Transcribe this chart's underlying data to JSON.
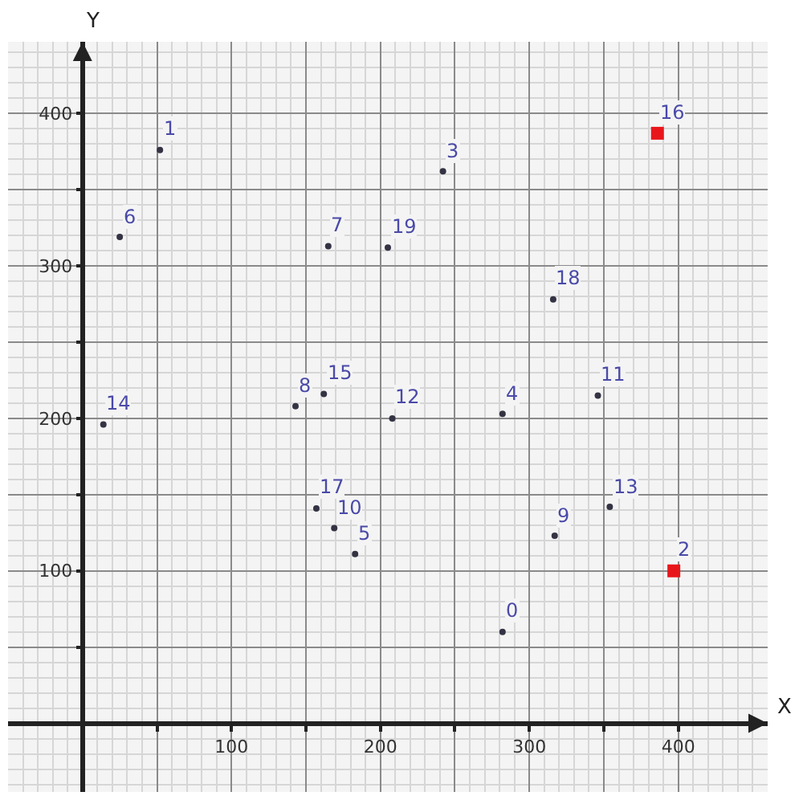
{
  "chart_data": {
    "type": "scatter",
    "xlabel": "X",
    "ylabel": "Y",
    "xlim": [
      -50,
      460
    ],
    "ylim": [
      -45,
      447
    ],
    "xticks": [
      {
        "value": 50,
        "label": null
      },
      100,
      {
        "value": 150,
        "label": null
      },
      200,
      {
        "value": 250,
        "label": null
      },
      300,
      {
        "value": 350,
        "label": null
      },
      400
    ],
    "yticks": [
      {
        "value": 50,
        "label": null
      },
      100,
      {
        "value": 150,
        "label": null
      },
      200,
      {
        "value": 250,
        "label": null
      },
      300,
      {
        "value": 350,
        "label": null
      },
      400
    ],
    "grid": true,
    "series": [
      {
        "color": "#333344",
        "marker": "circle",
        "x": [
          282,
          52,
          242,
          282,
          183,
          25,
          165,
          143,
          317,
          169,
          346,
          208,
          354,
          14,
          162,
          157,
          316,
          205
        ],
        "values": [
          60,
          376,
          362,
          203,
          111,
          319,
          313,
          208,
          123,
          128,
          215,
          200,
          142,
          196,
          216,
          141,
          278,
          312
        ]
      },
      {
        "color": "#e8161b",
        "marker": "square",
        "x": [
          397,
          386
        ],
        "values": [
          100,
          387
        ]
      }
    ],
    "annotations": [
      {
        "text": "0",
        "x": 282,
        "y": 60
      },
      {
        "text": "1",
        "x": 52,
        "y": 376
      },
      {
        "text": "2",
        "x": 397,
        "y": 100
      },
      {
        "text": "3",
        "x": 242,
        "y": 362
      },
      {
        "text": "4",
        "x": 282,
        "y": 203
      },
      {
        "text": "5",
        "x": 183,
        "y": 111
      },
      {
        "text": "6",
        "x": 25,
        "y": 319
      },
      {
        "text": "7",
        "x": 165,
        "y": 313
      },
      {
        "text": "8",
        "x": 143,
        "y": 208
      },
      {
        "text": "9",
        "x": 317,
        "y": 123
      },
      {
        "text": "10",
        "x": 169,
        "y": 128
      },
      {
        "text": "11",
        "x": 346,
        "y": 215
      },
      {
        "text": "12",
        "x": 208,
        "y": 200
      },
      {
        "text": "13",
        "x": 354,
        "y": 142
      },
      {
        "text": "14",
        "x": 14,
        "y": 196
      },
      {
        "text": "15",
        "x": 162,
        "y": 216
      },
      {
        "text": "16",
        "x": 386,
        "y": 387
      },
      {
        "text": "17",
        "x": 157,
        "y": 141
      },
      {
        "text": "18",
        "x": 316,
        "y": 278
      },
      {
        "text": "19",
        "x": 205,
        "y": 312
      }
    ]
  }
}
